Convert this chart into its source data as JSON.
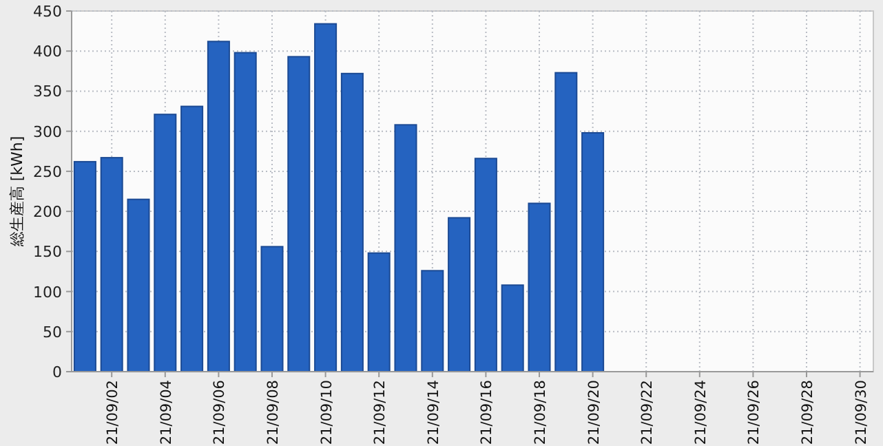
{
  "chart_data": {
    "type": "bar",
    "ylabel": "総生産高 [kWh]",
    "categories": [
      null,
      "21/09/02",
      null,
      "21/09/04",
      null,
      "21/09/06",
      null,
      "21/09/08",
      null,
      "21/09/10",
      null,
      "21/09/12",
      null,
      "21/09/14",
      null,
      "21/09/16",
      null,
      "21/09/18",
      null,
      "21/09/20",
      null,
      "21/09/22",
      null,
      "21/09/24",
      null,
      "21/09/26",
      null,
      "21/09/28",
      null,
      "21/09/30"
    ],
    "values": [
      262,
      267,
      215,
      321,
      331,
      412,
      398,
      156,
      393,
      434,
      372,
      148,
      308,
      126,
      192,
      266,
      108,
      210,
      373,
      298,
      null,
      null,
      null,
      null,
      null,
      null,
      null,
      null,
      null,
      null
    ],
    "color": "#2563c0",
    "ylim": [
      0,
      450
    ],
    "yticks": [
      0,
      50,
      100,
      150,
      200,
      250,
      300,
      350,
      400,
      450
    ],
    "grid": true
  }
}
